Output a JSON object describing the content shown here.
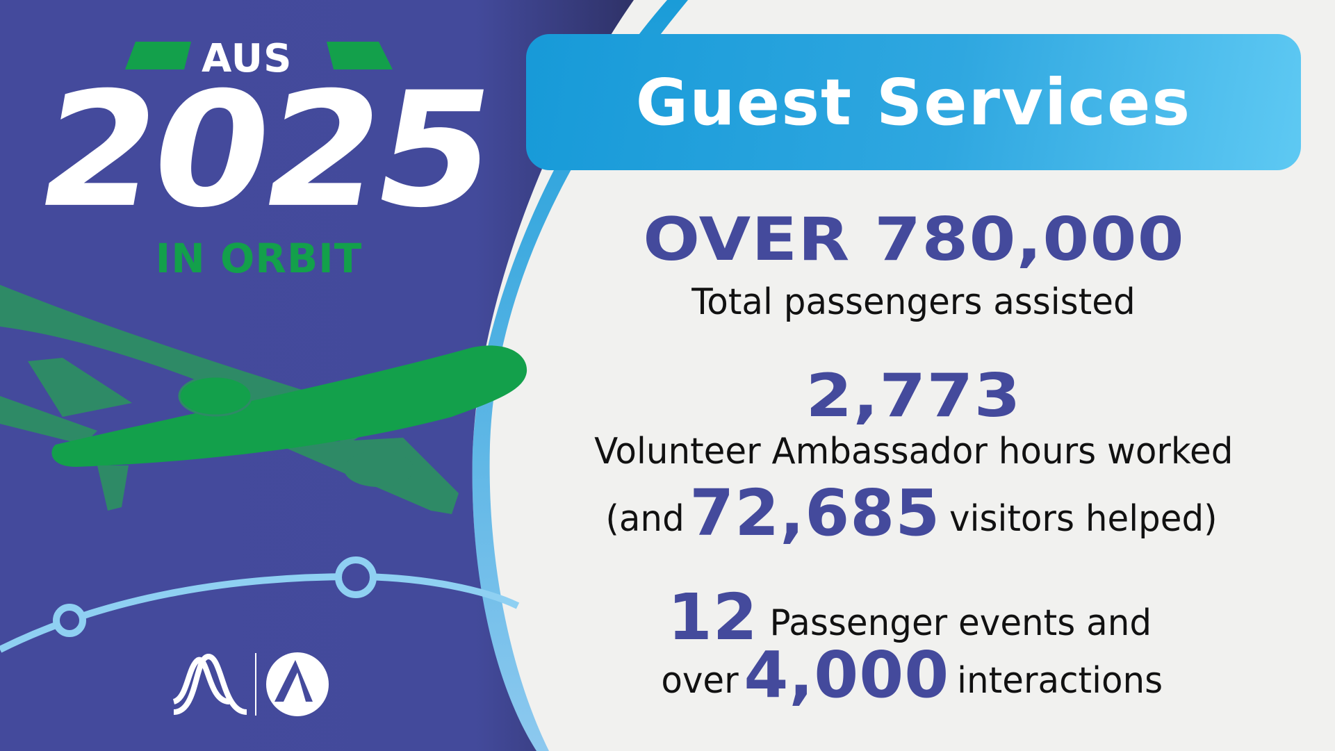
{
  "logo": {
    "top": "AUS",
    "year": "2025",
    "subtitle": "IN ORBIT"
  },
  "title": "Guest Services",
  "stats": [
    {
      "value": "OVER 780,000",
      "label": "Total passengers assisted"
    },
    {
      "value": "2,773",
      "label": "Volunteer Ambassador hours worked",
      "extra_prefix": "(and",
      "extra_value": "72,685",
      "extra_suffix": "visitors helped)"
    },
    {
      "value": "12",
      "label": "Passenger events and",
      "line2_prefix": "over",
      "line2_value": "4,000",
      "line2_suffix": "interactions"
    }
  ],
  "colors": {
    "purple": "#444a9c",
    "green": "#13a04b",
    "blue": "#1a9cd8",
    "light_blue": "#8fd0f2",
    "background": "#f1f1ef"
  },
  "icons": [
    "airplane-icon",
    "orbit-path-icon",
    "city-of-austin-logo",
    "aus-airport-logo"
  ]
}
